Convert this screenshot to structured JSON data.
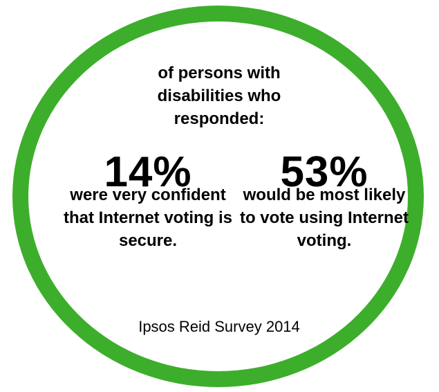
{
  "intro": "of persons with disabilities who responded:",
  "stats": [
    {
      "value": "14%",
      "description": "were very confident that Internet voting is secure."
    },
    {
      "value": "53%",
      "description": "would be most likely to vote using Internet voting."
    }
  ],
  "source": "Ipsos Reid Survey 2014",
  "colors": {
    "ring": "#3dae2b",
    "text": "#000000",
    "background": "#ffffff"
  }
}
